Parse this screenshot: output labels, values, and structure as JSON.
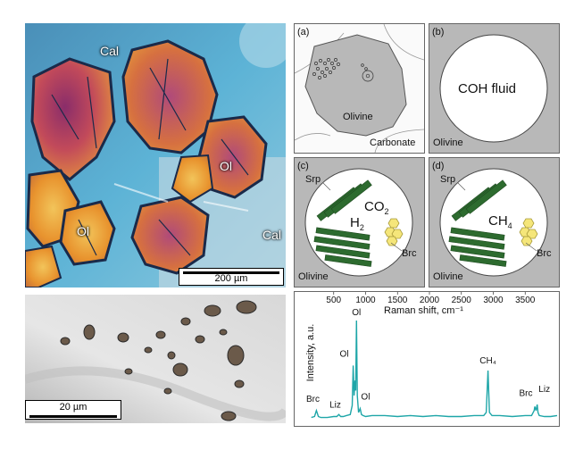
{
  "photo_top": {
    "labels": [
      "Cal",
      "Cal",
      "Ol",
      "Ol"
    ],
    "scale_label": "200 µm"
  },
  "photo_bottom": {
    "scale_label": "20 µm"
  },
  "schematics": [
    {
      "letter": "(a)",
      "texts": [
        "Olivine",
        "Carbonate"
      ]
    },
    {
      "letter": "(b)",
      "texts": [
        "COH fluid",
        "Olivine"
      ]
    },
    {
      "letter": "(c)",
      "texts": [
        "Srp",
        "Olivine",
        "Brc"
      ],
      "gas1": "H",
      "gas1_sub": "2",
      "gas2": "CO",
      "gas2_sub": "2"
    },
    {
      "letter": "(d)",
      "texts": [
        "Srp",
        "Olivine",
        "Brc"
      ],
      "gas1": "CH",
      "gas1_sub": "4"
    }
  ],
  "colors": {
    "teal": "#1ea6a8",
    "dark_green": "#2d6b2f",
    "gray_fill": "#b8b8b8",
    "hex_yellow": "#f5e67a"
  },
  "chart_data": {
    "type": "line",
    "xlabel": "Raman shift, cm⁻¹",
    "ylabel": "Intensity, a.u.",
    "xlim": [
      0,
      4000
    ],
    "xticks": [
      500,
      1000,
      1500,
      2000,
      2500,
      3000,
      3500
    ],
    "series": [
      {
        "x": [
          150,
          200,
          230,
          260,
          300,
          400,
          500,
          550,
          580,
          610,
          650,
          700,
          760,
          790,
          805,
          820,
          835,
          845,
          857,
          870,
          890,
          915,
          935,
          960,
          1000,
          1100,
          1300,
          1500,
          1700,
          1900,
          2100,
          2300,
          2500,
          2700,
          2850,
          2890,
          2917,
          2940,
          2980,
          3100,
          3300,
          3500,
          3600,
          3640,
          3650,
          3670,
          3688,
          3700,
          3720,
          3800,
          3900,
          4000
        ],
        "y": [
          0.03,
          0.04,
          0.1,
          0.04,
          0.03,
          0.03,
          0.04,
          0.04,
          0.06,
          0.04,
          0.04,
          0.05,
          0.06,
          0.15,
          0.55,
          0.25,
          0.4,
          0.3,
          1.0,
          0.25,
          0.08,
          0.12,
          0.06,
          0.05,
          0.04,
          0.05,
          0.05,
          0.04,
          0.05,
          0.04,
          0.05,
          0.04,
          0.04,
          0.05,
          0.05,
          0.08,
          0.5,
          0.08,
          0.05,
          0.05,
          0.04,
          0.05,
          0.05,
          0.1,
          0.14,
          0.1,
          0.16,
          0.08,
          0.05,
          0.04,
          0.04,
          0.05
        ]
      }
    ],
    "annotations": [
      {
        "text": "Ol",
        "x": 857
      },
      {
        "text": "Ol",
        "x": 805
      },
      {
        "text": "Ol",
        "x": 915
      },
      {
        "text": "Brc",
        "x": 230
      },
      {
        "text": "Liz",
        "x": 580
      },
      {
        "text": "CH₄",
        "x": 2917
      },
      {
        "text": "Brc",
        "x": 3650
      },
      {
        "text": "Liz",
        "x": 3688
      }
    ]
  }
}
